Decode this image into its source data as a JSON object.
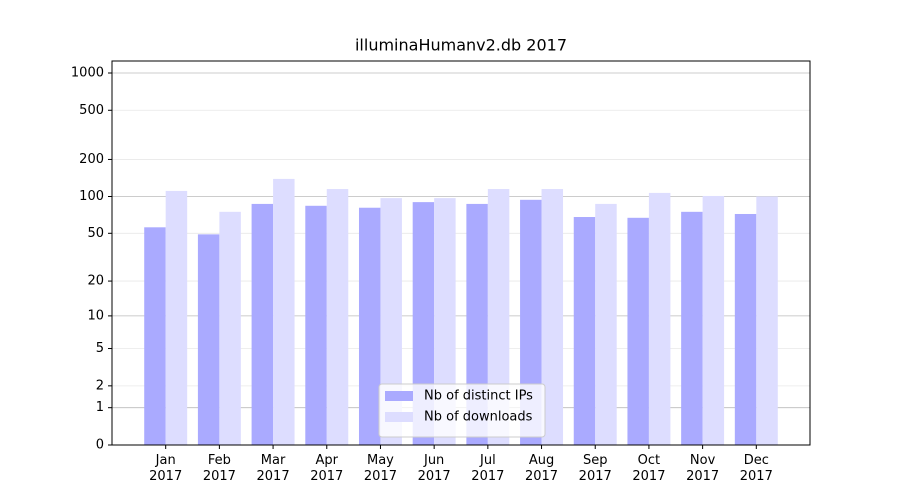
{
  "chart_data": {
    "type": "bar",
    "title": "illuminaHumanv2.db 2017",
    "categories": [
      "Jan 2017",
      "Feb 2017",
      "Mar 2017",
      "Apr 2017",
      "May 2017",
      "Jun 2017",
      "Jul 2017",
      "Aug 2017",
      "Sep 2017",
      "Oct 2017",
      "Nov 2017",
      "Dec 2017"
    ],
    "series": [
      {
        "name": "Nb of distinct IPs",
        "color": "#aaaaff",
        "values": [
          56,
          49,
          87,
          84,
          81,
          90,
          87,
          94,
          68,
          67,
          75,
          72
        ]
      },
      {
        "name": "Nb of downloads",
        "color": "#ddddff",
        "values": [
          111,
          75,
          139,
          115,
          97,
          97,
          115,
          115,
          87,
          107,
          101,
          100
        ]
      }
    ],
    "yscale": "log1p",
    "ylim": [
      0,
      1250
    ],
    "yticks": [
      0,
      1,
      2,
      5,
      10,
      20,
      50,
      100,
      200,
      500,
      1000
    ],
    "grid": true,
    "legend": "lower center"
  }
}
